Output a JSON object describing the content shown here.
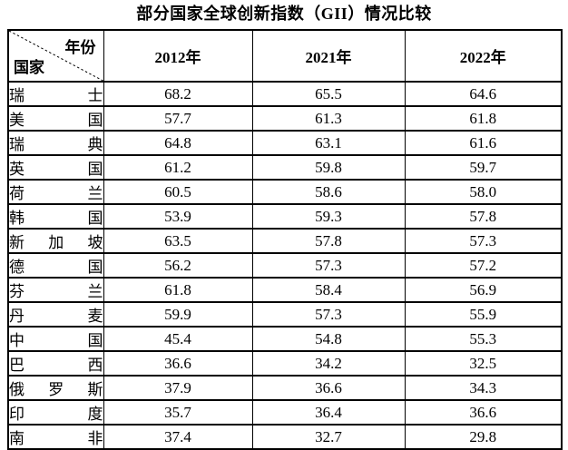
{
  "title": "部分国家全球创新指数（GII）情况比较",
  "table": {
    "corner": {
      "top_right": "年份",
      "bottom_left": "国家"
    },
    "columns": [
      "2012年",
      "2021年",
      "2022年"
    ],
    "rows": [
      {
        "country": "瑞士",
        "values": [
          "68.2",
          "65.5",
          "64.6"
        ]
      },
      {
        "country": "美国",
        "values": [
          "57.7",
          "61.3",
          "61.8"
        ]
      },
      {
        "country": "瑞典",
        "values": [
          "64.8",
          "63.1",
          "61.6"
        ]
      },
      {
        "country": "英国",
        "values": [
          "61.2",
          "59.8",
          "59.7"
        ]
      },
      {
        "country": "荷兰",
        "values": [
          "60.5",
          "58.6",
          "58.0"
        ]
      },
      {
        "country": "韩国",
        "values": [
          "53.9",
          "59.3",
          "57.8"
        ]
      },
      {
        "country": "新加坡",
        "values": [
          "63.5",
          "57.8",
          "57.3"
        ]
      },
      {
        "country": "德国",
        "values": [
          "56.2",
          "57.3",
          "57.2"
        ]
      },
      {
        "country": "芬兰",
        "values": [
          "61.8",
          "58.4",
          "56.9"
        ]
      },
      {
        "country": "丹麦",
        "values": [
          "59.9",
          "57.3",
          "55.9"
        ]
      },
      {
        "country": "中国",
        "values": [
          "45.4",
          "54.8",
          "55.3"
        ]
      },
      {
        "country": "巴西",
        "values": [
          "36.6",
          "34.2",
          "32.5"
        ]
      },
      {
        "country": "俄罗斯",
        "values": [
          "37.9",
          "36.6",
          "34.3"
        ]
      },
      {
        "country": "印度",
        "values": [
          "35.7",
          "36.4",
          "36.6"
        ]
      },
      {
        "country": "南非",
        "values": [
          "37.4",
          "32.7",
          "29.8"
        ]
      }
    ]
  },
  "colors": {
    "text": "#000000",
    "border": "#000000",
    "background": "#ffffff"
  },
  "chart_data": {
    "type": "table",
    "title": "部分国家全球创新指数（GII）情况比较",
    "categories": [
      "瑞士",
      "美国",
      "瑞典",
      "英国",
      "荷兰",
      "韩国",
      "新加坡",
      "德国",
      "芬兰",
      "丹麦",
      "中国",
      "巴西",
      "俄罗斯",
      "印度",
      "南非"
    ],
    "series": [
      {
        "name": "2012年",
        "values": [
          68.2,
          57.7,
          64.8,
          61.2,
          60.5,
          53.9,
          63.5,
          56.2,
          61.8,
          59.9,
          45.4,
          36.6,
          37.9,
          35.7,
          37.4
        ]
      },
      {
        "name": "2021年",
        "values": [
          65.5,
          61.3,
          63.1,
          59.8,
          58.6,
          59.3,
          57.8,
          57.3,
          58.4,
          57.3,
          54.8,
          34.2,
          36.6,
          36.4,
          32.7
        ]
      },
      {
        "name": "2022年",
        "values": [
          64.6,
          61.8,
          61.6,
          59.7,
          58.0,
          57.8,
          57.3,
          57.2,
          56.9,
          55.9,
          55.3,
          32.5,
          34.3,
          36.6,
          29.8
        ]
      }
    ]
  }
}
